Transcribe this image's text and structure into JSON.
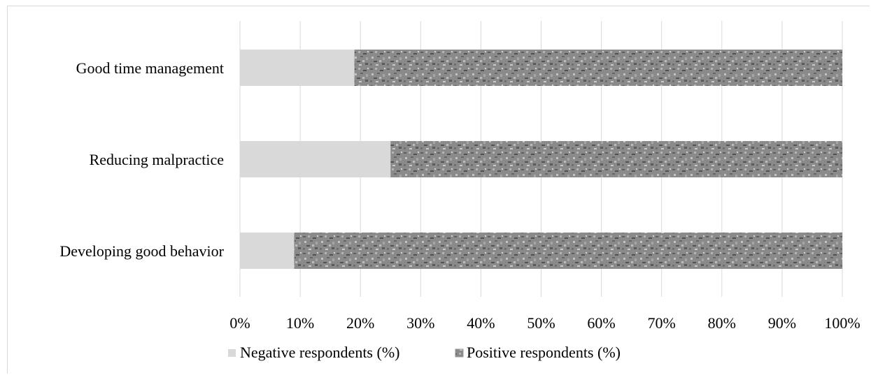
{
  "chart_data": {
    "type": "bar",
    "orientation": "horizontal",
    "stacked": true,
    "title": "",
    "xlabel": "",
    "ylabel": "",
    "categories": [
      "Good time management",
      "Reducing malpractice",
      "Developing good behavior"
    ],
    "series": [
      {
        "name": "Negative respondents (%)",
        "values": [
          19,
          25,
          9
        ],
        "color": "#d9d9d9"
      },
      {
        "name": "Positive respondents (%)",
        "values": [
          81,
          75,
          91
        ],
        "color": "#8c8c8c"
      }
    ],
    "xlim": [
      0,
      100
    ],
    "xticks": [
      "0%",
      "10%",
      "20%",
      "30%",
      "40%",
      "50%",
      "60%",
      "70%",
      "80%",
      "90%",
      "100%"
    ],
    "grid": "vertical",
    "legend_position": "bottom"
  }
}
